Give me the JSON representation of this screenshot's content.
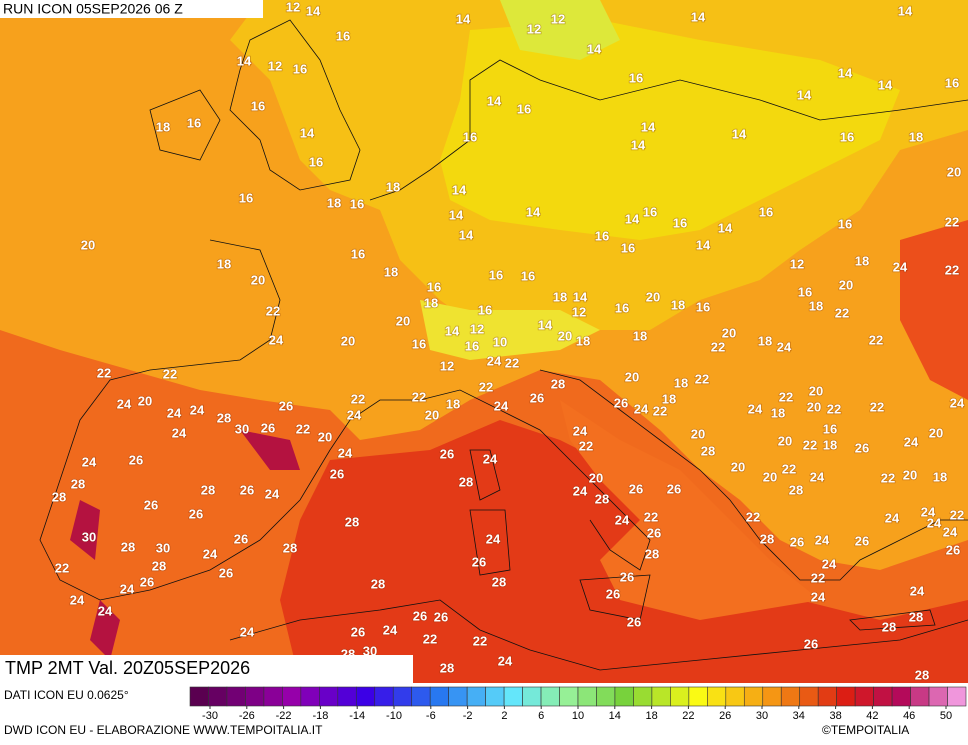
{
  "header": {
    "run": "RUN ICON 05SEP2026 06 Z",
    "field": "TMP 2MT Val. 20Z05SEP2026"
  },
  "footer": {
    "data_source": "DATI ICON EU 0.0625°",
    "credit": "DWD ICON EU - ELABORAZIONE WWW.TEMPOITALIA.IT",
    "copyright": "©TEMPOITALIA"
  },
  "legend": {
    "ticks": [
      -30,
      -26,
      -22,
      -18,
      -14,
      -10,
      -6,
      -2,
      2,
      6,
      10,
      14,
      18,
      22,
      26,
      30,
      34,
      38,
      42,
      46,
      50
    ]
  },
  "map_labels": [
    12,
    14,
    14,
    12,
    12,
    14,
    14,
    16,
    14,
    14,
    12,
    16,
    16,
    14,
    14,
    16,
    16,
    14,
    16,
    14,
    18,
    16,
    14,
    14,
    14,
    14,
    16,
    16,
    18,
    16,
    18,
    16,
    18,
    16,
    14,
    14,
    14,
    14,
    16,
    16,
    16,
    20,
    20,
    14,
    16,
    16,
    14,
    14,
    16,
    22,
    18,
    20,
    16,
    18,
    16,
    16,
    12,
    18,
    24,
    22,
    16,
    18,
    20,
    16,
    18,
    14,
    16,
    20,
    18,
    16,
    16,
    20,
    18,
    22,
    22,
    14,
    12,
    14,
    12,
    20,
    24,
    20,
    16,
    16,
    10,
    20,
    18,
    18,
    22,
    18,
    24,
    22,
    12,
    24,
    22,
    22,
    22,
    22,
    28,
    20,
    18,
    22,
    20,
    24,
    20,
    26,
    22,
    22,
    24,
    26,
    26,
    24,
    22,
    18,
    24,
    18,
    22,
    20,
    22,
    22,
    24,
    24,
    24,
    28,
    24,
    20,
    18,
    30,
    26,
    22,
    20,
    24,
    24,
    20,
    20,
    16,
    20,
    24,
    22,
    28,
    22,
    18,
    26,
    24,
    26,
    24,
    26,
    26,
    24,
    20,
    20,
    22,
    24,
    22,
    20,
    18,
    28,
    28,
    20,
    28,
    26,
    24,
    24,
    28,
    26,
    26,
    28,
    28,
    26,
    26,
    28,
    24,
    22,
    22,
    24,
    22,
    24,
    26,
    24,
    30,
    26,
    24,
    28,
    26,
    24,
    26,
    24,
    28,
    30,
    28,
    28,
    26,
    28,
    24,
    22,
    26,
    24,
    26,
    26,
    24,
    28,
    26,
    28,
    22,
    24,
    26,
    24,
    28,
    24,
    26,
    26,
    24,
    26,
    28,
    24,
    26,
    24,
    22,
    22,
    26,
    28,
    30,
    28,
    24,
    28,
    28
  ]
}
